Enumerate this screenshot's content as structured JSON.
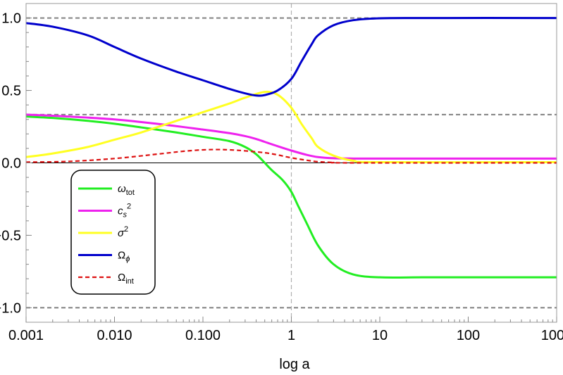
{
  "chart_data": {
    "type": "line",
    "xlabel": "log a",
    "ylabel": "",
    "title": "",
    "x_scale": "log",
    "xlim": [
      0.001,
      1000
    ],
    "ylim": [
      -1.1,
      1.1
    ],
    "x_ticks": [
      {
        "value": 0.001,
        "label": "0.001"
      },
      {
        "value": 0.01,
        "label": "0.010"
      },
      {
        "value": 0.1,
        "label": "0.100"
      },
      {
        "value": 1,
        "label": "1"
      },
      {
        "value": 10,
        "label": "10"
      },
      {
        "value": 100,
        "label": "100"
      },
      {
        "value": 1000,
        "label": "1000"
      }
    ],
    "y_ticks": [
      {
        "value": -1.0,
        "label": "-1.0"
      },
      {
        "value": -0.5,
        "label": "-0.5"
      },
      {
        "value": 0.0,
        "label": "0.0"
      },
      {
        "value": 0.5,
        "label": "0.5"
      },
      {
        "value": 1.0,
        "label": "1.0"
      }
    ],
    "reference_lines": [
      {
        "orientation": "horizontal",
        "value": 1.0,
        "style": "dashed",
        "color": "#808080"
      },
      {
        "orientation": "horizontal",
        "value": 0.333,
        "style": "dashed",
        "color": "#808080"
      },
      {
        "orientation": "horizontal",
        "value": 0.0,
        "style": "solid",
        "color": "#000000"
      },
      {
        "orientation": "horizontal",
        "value": -1.0,
        "style": "dashed",
        "color": "#808080"
      },
      {
        "orientation": "vertical",
        "value": 1,
        "style": "dashed",
        "color": "#b0b0b0"
      }
    ],
    "legend_position": "left-center",
    "grid": false,
    "series": [
      {
        "key": "omega_tot",
        "legend": {
          "symbol": "ω",
          "sub": "tot",
          "sup": ""
        },
        "color": "#22ee22",
        "style": "solid",
        "points": [
          [
            0.001,
            0.32
          ],
          [
            0.002,
            0.31
          ],
          [
            0.005,
            0.29
          ],
          [
            0.01,
            0.27
          ],
          [
            0.02,
            0.245
          ],
          [
            0.05,
            0.21
          ],
          [
            0.1,
            0.18
          ],
          [
            0.2,
            0.15
          ],
          [
            0.3,
            0.11
          ],
          [
            0.4,
            0.06
          ],
          [
            0.5,
            0.0
          ],
          [
            0.6,
            -0.05
          ],
          [
            0.8,
            -0.12
          ],
          [
            1.0,
            -0.2
          ],
          [
            1.2,
            -0.3
          ],
          [
            1.5,
            -0.42
          ],
          [
            2.0,
            -0.57
          ],
          [
            3.0,
            -0.7
          ],
          [
            5.0,
            -0.77
          ],
          [
            10,
            -0.79
          ],
          [
            30,
            -0.79
          ],
          [
            100,
            -0.79
          ],
          [
            1000,
            -0.79
          ]
        ]
      },
      {
        "key": "c_s2",
        "legend": {
          "symbol": "c",
          "sub": "s",
          "sup": "2"
        },
        "color": "#ee22ee",
        "style": "solid",
        "points": [
          [
            0.001,
            0.333
          ],
          [
            0.003,
            0.32
          ],
          [
            0.01,
            0.3
          ],
          [
            0.03,
            0.27
          ],
          [
            0.1,
            0.23
          ],
          [
            0.2,
            0.205
          ],
          [
            0.3,
            0.185
          ],
          [
            0.4,
            0.165
          ],
          [
            0.5,
            0.145
          ],
          [
            0.7,
            0.115
          ],
          [
            1.0,
            0.085
          ],
          [
            1.5,
            0.055
          ],
          [
            2.0,
            0.04
          ],
          [
            3.0,
            0.032
          ],
          [
            5.0,
            0.03
          ],
          [
            10,
            0.03
          ],
          [
            1000,
            0.03
          ]
        ]
      },
      {
        "key": "sigma2",
        "legend": {
          "symbol": "σ",
          "sub": "",
          "sup": "2"
        },
        "color": "#ffff22",
        "style": "solid",
        "points": [
          [
            0.001,
            0.04
          ],
          [
            0.002,
            0.065
          ],
          [
            0.005,
            0.11
          ],
          [
            0.01,
            0.16
          ],
          [
            0.02,
            0.21
          ],
          [
            0.05,
            0.29
          ],
          [
            0.1,
            0.35
          ],
          [
            0.2,
            0.41
          ],
          [
            0.3,
            0.45
          ],
          [
            0.5,
            0.49
          ],
          [
            0.7,
            0.47
          ],
          [
            1.0,
            0.38
          ],
          [
            1.3,
            0.27
          ],
          [
            1.7,
            0.17
          ],
          [
            2.0,
            0.11
          ],
          [
            3.0,
            0.05
          ],
          [
            5.0,
            0.015
          ],
          [
            10,
            0.005
          ],
          [
            1000,
            0.005
          ]
        ]
      },
      {
        "key": "Omega_phi",
        "legend": {
          "symbol": "Ω",
          "sub": "ϕ",
          "sup": ""
        },
        "color": "#0000cc",
        "style": "solid",
        "points": [
          [
            0.001,
            0.965
          ],
          [
            0.002,
            0.94
          ],
          [
            0.005,
            0.88
          ],
          [
            0.01,
            0.8
          ],
          [
            0.02,
            0.72
          ],
          [
            0.05,
            0.63
          ],
          [
            0.1,
            0.57
          ],
          [
            0.2,
            0.51
          ],
          [
            0.3,
            0.48
          ],
          [
            0.4,
            0.465
          ],
          [
            0.5,
            0.468
          ],
          [
            0.7,
            0.5
          ],
          [
            1.0,
            0.58
          ],
          [
            1.3,
            0.7
          ],
          [
            1.7,
            0.82
          ],
          [
            2.0,
            0.88
          ],
          [
            3.0,
            0.95
          ],
          [
            5.0,
            0.985
          ],
          [
            10,
            0.998
          ],
          [
            30,
            1.0
          ],
          [
            1000,
            1.0
          ]
        ]
      },
      {
        "key": "Omega_int",
        "legend": {
          "symbol": "Ω",
          "sub": "int",
          "sup": ""
        },
        "color": "#dd1111",
        "style": "dashed",
        "points": [
          [
            0.001,
            0.005
          ],
          [
            0.003,
            0.01
          ],
          [
            0.01,
            0.03
          ],
          [
            0.03,
            0.06
          ],
          [
            0.06,
            0.08
          ],
          [
            0.1,
            0.09
          ],
          [
            0.15,
            0.092
          ],
          [
            0.2,
            0.09
          ],
          [
            0.3,
            0.083
          ],
          [
            0.5,
            0.07
          ],
          [
            0.7,
            0.055
          ],
          [
            1.0,
            0.035
          ],
          [
            1.5,
            0.018
          ],
          [
            2.0,
            0.008
          ],
          [
            3.0,
            0.003
          ],
          [
            5.0,
            0.0
          ],
          [
            1000,
            0.0
          ]
        ]
      }
    ]
  }
}
